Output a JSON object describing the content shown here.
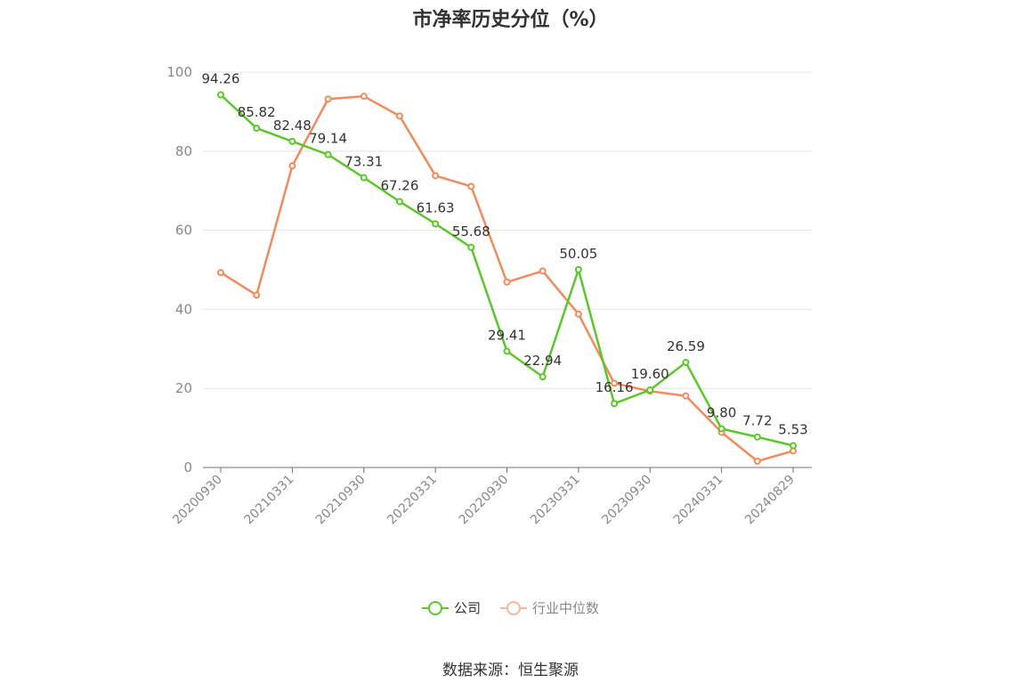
{
  "chart_data": {
    "type": "line",
    "title": "市净率历史分位（%）",
    "ylim": [
      0,
      100
    ],
    "y_ticks": [
      0,
      20,
      40,
      60,
      80,
      100
    ],
    "x_tick_labels": [
      "20200930",
      "20210331",
      "20210930",
      "20220331",
      "20220930",
      "20230331",
      "20230930",
      "20240331",
      "20240829"
    ],
    "grid": true,
    "legend_position": "bottom",
    "series": [
      {
        "name": "公司",
        "color": "#5cc72a",
        "values": [
          94.26,
          85.82,
          82.48,
          79.14,
          73.31,
          67.26,
          61.63,
          55.68,
          29.41,
          22.94,
          50.05,
          16.16,
          19.6,
          26.59,
          9.8,
          7.72,
          5.53
        ],
        "labels": [
          "94.26",
          "85.82",
          "82.48",
          "79.14",
          "73.31",
          "67.26",
          "61.63",
          "55.68",
          "29.41",
          "22.94",
          "50.05",
          "16.16",
          "19.60",
          "26.59",
          "9.80",
          "7.72",
          "5.53"
        ]
      },
      {
        "name": "行业中位数",
        "color": "#f28a5c",
        "values": [
          49.3,
          43.6,
          76.3,
          93.2,
          93.9,
          88.9,
          73.8,
          71.1,
          46.9,
          49.7,
          38.8,
          21.3,
          19.3,
          18.1,
          8.9,
          1.6,
          4.2
        ]
      }
    ]
  },
  "legend": {
    "items": [
      {
        "label": "公司",
        "color": "#5cc72a"
      },
      {
        "label": "行业中位数",
        "color": "#f7b79c"
      }
    ]
  },
  "source": "数据来源：恒生聚源"
}
